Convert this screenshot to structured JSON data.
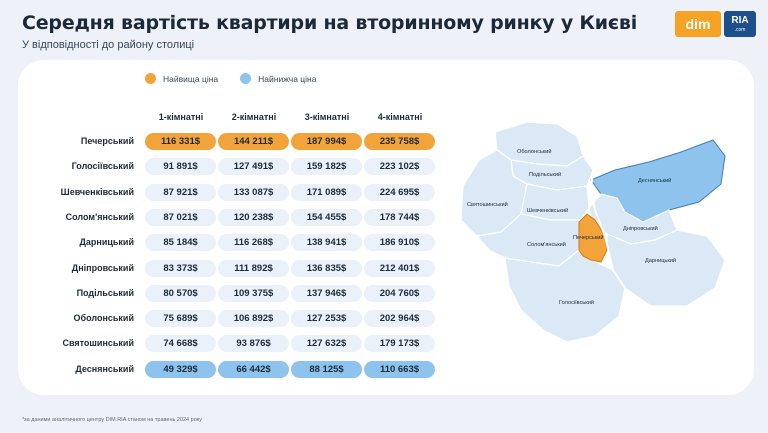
{
  "header": {
    "title": "Середня вартість квартири на вторинному ринку у Києві",
    "subtitle": "У відповідності до району столиці"
  },
  "logo": {
    "dim": "dim",
    "ria": "RIA",
    "ria_sub": ".com"
  },
  "legend": {
    "high": {
      "label": "Найвища ціна",
      "color": "#f2a43a"
    },
    "low": {
      "label": "Найнижча ціна",
      "color": "#8ec3ee"
    }
  },
  "table": {
    "columns": [
      "1-кімнатні",
      "2-кімнатні",
      "3-кімнатні",
      "4-кімнатні"
    ],
    "rows": [
      {
        "district": "Печерський",
        "values": [
          "116 331$",
          "144 211$",
          "187 994$",
          "235 758$"
        ],
        "highlight": "high"
      },
      {
        "district": "Голосіївський",
        "values": [
          "91 891$",
          "127 491$",
          "159 182$",
          "223 102$"
        ],
        "highlight": ""
      },
      {
        "district": "Шевченківський",
        "values": [
          "87 921$",
          "133 087$",
          "171 089$",
          "224 695$"
        ],
        "highlight": ""
      },
      {
        "district": "Солом'янський",
        "values": [
          "87 021$",
          "120 238$",
          "154 455$",
          "178 744$"
        ],
        "highlight": ""
      },
      {
        "district": "Дарницький",
        "values": [
          "85 184$",
          "116 268$",
          "138 941$",
          "186 910$"
        ],
        "highlight": ""
      },
      {
        "district": "Дніпровський",
        "values": [
          "83 373$",
          "111 892$",
          "136 835$",
          "212 401$"
        ],
        "highlight": ""
      },
      {
        "district": "Подільський",
        "values": [
          "80 570$",
          "109 375$",
          "137 946$",
          "204 760$"
        ],
        "highlight": ""
      },
      {
        "district": "Оболонський",
        "values": [
          "75 689$",
          "106 892$",
          "127 253$",
          "202 964$"
        ],
        "highlight": ""
      },
      {
        "district": "Святошинський",
        "values": [
          "74 668$",
          "93 876$",
          "127 632$",
          "179 173$"
        ],
        "highlight": ""
      },
      {
        "district": "Деснянський",
        "values": [
          "49 329$",
          "66 442$",
          "88 125$",
          "110 663$"
        ],
        "highlight": "low"
      }
    ]
  },
  "map": {
    "labels": {
      "obolonskyi": "Оболонський",
      "podilskyi": "Подільський",
      "desnianskyi": "Деснянський",
      "sviatoshynskyi": "Святошинський",
      "shevchenkivskyi": "Шевченківський",
      "dniprovskyi": "Дніпровський",
      "pecherskyi": "Печерський",
      "solomianskyi": "Солом'янський",
      "darnytskyi": "Дарницький",
      "holosiivskyi": "Голосіївський"
    }
  },
  "footnote": "*за даними аналітичного центру DIM.RIA станом на травень 2024 року"
}
